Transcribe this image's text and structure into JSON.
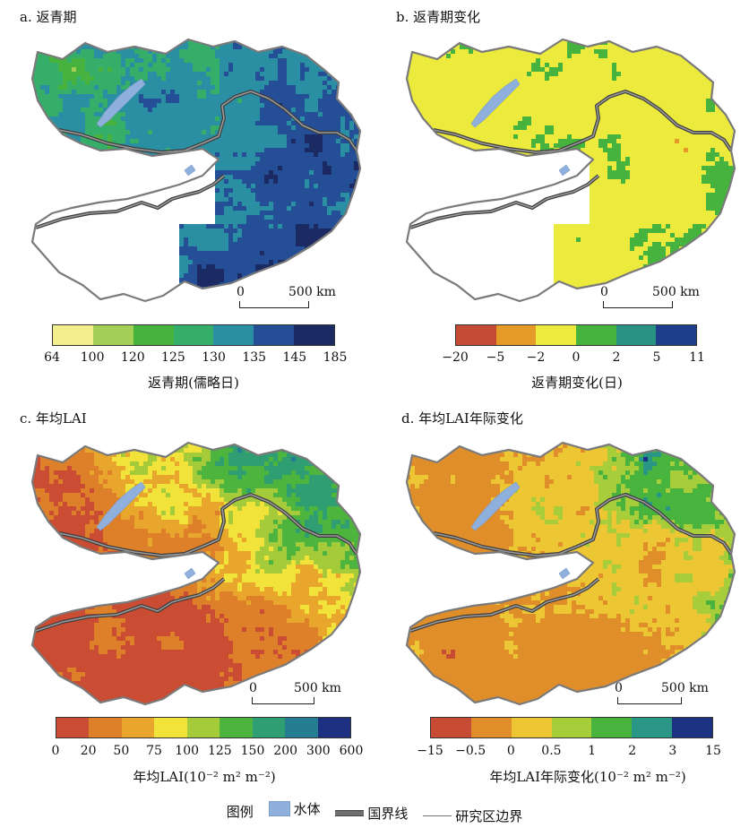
{
  "panels": [
    {
      "title": "a. 返青期",
      "colors": [
        "#f3ef8f",
        "#a3cf57",
        "#47b23d",
        "#35ae6a",
        "#2a8fa3",
        "#244e96",
        "#1c2a63"
      ],
      "weights": [
        0.02,
        0.06,
        0.1,
        0.14,
        0.22,
        0.18,
        0.28
      ],
      "ticks": [
        "64",
        "100",
        "120",
        "125",
        "130",
        "135",
        "145",
        "185"
      ],
      "label": "返青期(儒略日)",
      "no_southwest": true
    },
    {
      "title": "b. 返青期变化",
      "colors": [
        "#c54a34",
        "#e59a27",
        "#ecea3c",
        "#46b33f",
        "#2b9383",
        "#1e3e8b"
      ],
      "weights": [
        0.03,
        0.07,
        0.55,
        0.32,
        0.02,
        0.01
      ],
      "ticks": [
        "−20",
        "−5",
        "−2",
        "0",
        "2",
        "5",
        "11"
      ],
      "label": "返青期变化(日)",
      "no_southwest": true
    },
    {
      "title": "c. 年均LAI",
      "colors": [
        "#c94c33",
        "#de7f2a",
        "#e8a62c",
        "#f2e33a",
        "#a6cb3a",
        "#4db43d",
        "#2f9e73",
        "#257d92",
        "#1c2f80"
      ],
      "weights": [
        0.3,
        0.14,
        0.1,
        0.08,
        0.09,
        0.1,
        0.1,
        0.06,
        0.03
      ],
      "ticks": [
        "0",
        "20",
        "50",
        "75",
        "100",
        "125",
        "150",
        "200",
        "300",
        "600"
      ],
      "label": "年均LAI(10⁻² m² m⁻²)",
      "no_southwest": false
    },
    {
      "title": "d. 年均LAI年际变化",
      "colors": [
        "#c84b33",
        "#e08e2a",
        "#ecc733",
        "#a7cd3b",
        "#48b43e",
        "#2a9686",
        "#1b3382"
      ],
      "weights": [
        0.1,
        0.3,
        0.15,
        0.1,
        0.14,
        0.08,
        0.13
      ],
      "ticks": [
        "−15",
        "−0.5",
        "0",
        "0.5",
        "1",
        "2",
        "3",
        "15"
      ],
      "label": "年均LAI年际变化(10⁻² m² m⁻²)",
      "no_southwest": false
    }
  ],
  "scalebar": {
    "zero": "0",
    "distance": "500 km"
  },
  "legend": {
    "heading": "图例",
    "water": "水体",
    "national_border": "国界线",
    "study_area_border": "研究区边界"
  },
  "colors": {
    "water": "#8fb0dd",
    "border": "#6e6e6e",
    "study_outline": "#7a7a7a"
  }
}
